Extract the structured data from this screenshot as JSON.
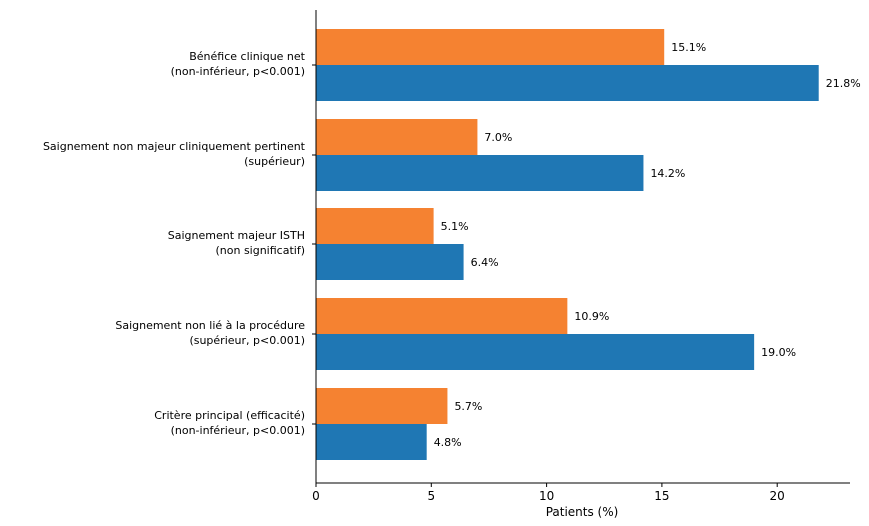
{
  "chart_data": {
    "type": "bar",
    "orientation": "horizontal",
    "title": "",
    "xlabel": "Patients (%)",
    "ylabel": "",
    "xlim": [
      0,
      23
    ],
    "xticks": [
      "0",
      "5",
      "10",
      "15",
      "20"
    ],
    "grid": false,
    "legend": "none",
    "categories": [
      {
        "line1": "Bénéfice clinique net",
        "line2": "(non-inférieur, p<0.001)"
      },
      {
        "line1": "Saignement non majeur cliniquement pertinent",
        "line2": "(supérieur)"
      },
      {
        "line1": "Saignement majeur ISTH",
        "line2": "(non significatif)"
      },
      {
        "line1": "Saignement non lié à la procédure",
        "line2": "(supérieur, p<0.001)"
      },
      {
        "line1": "Critère principal (efficacité)",
        "line2": "(non-inférieur, p<0.001)"
      }
    ],
    "series": [
      {
        "color": "#f58231",
        "values": [
          15.1,
          7.0,
          5.1,
          10.9,
          5.7
        ],
        "labels": [
          "15.1%",
          "7.0%",
          "5.1%",
          "10.9%",
          "5.7%"
        ]
      },
      {
        "color": "#1f77b4",
        "values": [
          21.8,
          14.2,
          6.4,
          19.0,
          4.8
        ],
        "labels": [
          "21.8%",
          "14.2%",
          "6.4%",
          "19.0%",
          "4.8%"
        ]
      }
    ]
  }
}
